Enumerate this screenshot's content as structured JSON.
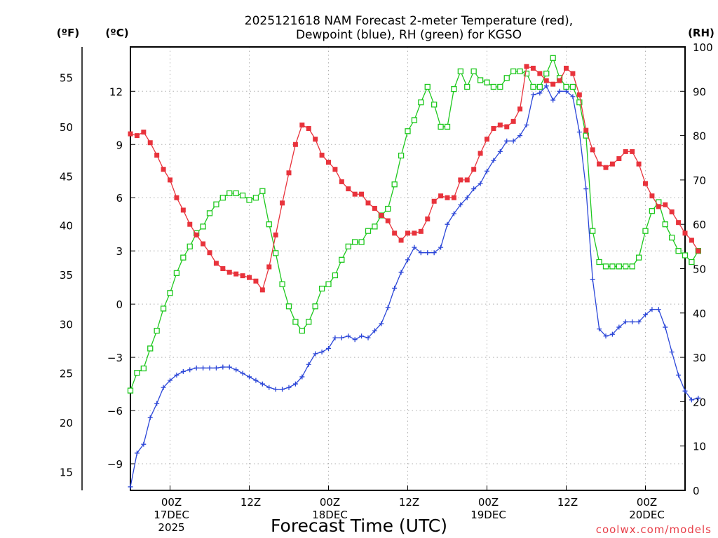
{
  "chart_data": {
    "type": "line",
    "title": [
      "2025121618 NAM Forecast 2-meter Temperature (red),",
      "Dewpoint (blue), RH (green) for KGSO"
    ],
    "xlabel": "Forecast Time (UTC)",
    "credit": "coolwx.com/models",
    "unit_labels": {
      "fahrenheit": "(ºF)",
      "celsius": "(ºC)",
      "rh": "(RH)"
    },
    "x_unit": "forecast hour (0 = 2025-12-16 18Z)",
    "xlim": [
      0,
      84
    ],
    "x_ticks": [
      {
        "x": 6,
        "lines": [
          "00Z",
          "17DEC",
          "2025"
        ]
      },
      {
        "x": 18,
        "lines": [
          "12Z"
        ]
      },
      {
        "x": 30,
        "lines": [
          "00Z",
          "18DEC"
        ]
      },
      {
        "x": 42,
        "lines": [
          "12Z"
        ]
      },
      {
        "x": 54,
        "lines": [
          "00Z",
          "19DEC"
        ]
      },
      {
        "x": 66,
        "lines": [
          "12Z"
        ]
      },
      {
        "x": 78,
        "lines": [
          "00Z",
          "20DEC"
        ]
      }
    ],
    "celsius_axis": {
      "range": [
        -10.5,
        14.5
      ],
      "ticks": [
        -9,
        -6,
        -3,
        0,
        3,
        6,
        9,
        12
      ]
    },
    "fahrenheit_axis": {
      "range": [
        13.1,
        58.1
      ],
      "ticks": [
        15,
        20,
        25,
        30,
        35,
        40,
        45,
        50,
        55
      ]
    },
    "rh_axis": {
      "range": [
        0,
        100
      ],
      "ticks": [
        0,
        10,
        20,
        30,
        40,
        50,
        60,
        70,
        80,
        90,
        100
      ]
    },
    "colors": {
      "temperature": "#e8333c",
      "dewpoint": "#2b46d8",
      "rh": "#1ec81e",
      "grid": "#b0b0b0"
    },
    "series": [
      {
        "name": "Temperature",
        "units": "C",
        "color": "#e8333c",
        "marker": "filled-square",
        "values": [
          9.6,
          9.5,
          9.7,
          9.1,
          8.4,
          7.6,
          7.0,
          6.0,
          5.3,
          4.5,
          3.9,
          3.4,
          2.9,
          2.3,
          2.0,
          1.8,
          1.7,
          1.6,
          1.5,
          1.3,
          0.8,
          2.1,
          3.9,
          5.7,
          7.4,
          9.0,
          10.1,
          9.9,
          9.3,
          8.4,
          8.0,
          7.6,
          6.9,
          6.5,
          6.2,
          6.2,
          5.7,
          5.4,
          5.0,
          4.7,
          4.0,
          3.6,
          4.0,
          4.0,
          4.1,
          4.8,
          5.8,
          6.1,
          6.0,
          6.0,
          7.0,
          7.0,
          7.6,
          8.5,
          9.3,
          9.9,
          10.1,
          10.0,
          10.3,
          11.0,
          13.4,
          13.3,
          13.0,
          12.6,
          12.4,
          12.6,
          13.3,
          13.0,
          11.8,
          9.8,
          8.7,
          7.9,
          7.7,
          7.9,
          8.2,
          8.6,
          8.6,
          7.9,
          6.8,
          6.1,
          5.5,
          5.6,
          5.2,
          4.6,
          4.0,
          3.6,
          3.0
        ]
      },
      {
        "name": "Dewpoint",
        "units": "C",
        "color": "#2b46d8",
        "marker": "plus",
        "values": [
          -10.3,
          -8.4,
          -7.9,
          -6.4,
          -5.6,
          -4.7,
          -4.3,
          -4.0,
          -3.8,
          -3.7,
          -3.6,
          -3.6,
          -3.6,
          -3.6,
          -3.55,
          -3.55,
          -3.7,
          -3.9,
          -4.1,
          -4.3,
          -4.5,
          -4.7,
          -4.8,
          -4.8,
          -4.7,
          -4.5,
          -4.1,
          -3.4,
          -2.8,
          -2.7,
          -2.5,
          -1.9,
          -1.9,
          -1.8,
          -2.0,
          -1.8,
          -1.9,
          -1.5,
          -1.1,
          -0.2,
          0.9,
          1.8,
          2.5,
          3.2,
          2.9,
          2.9,
          2.9,
          3.2,
          4.5,
          5.1,
          5.6,
          6.0,
          6.5,
          6.8,
          7.5,
          8.1,
          8.6,
          9.2,
          9.2,
          9.5,
          10.1,
          11.8,
          11.9,
          12.3,
          11.5,
          12.0,
          12.0,
          11.7,
          9.7,
          6.5,
          1.4,
          -1.4,
          -1.8,
          -1.7,
          -1.3,
          -1.0,
          -1.0,
          -1.0,
          -0.6,
          -0.3,
          -0.3,
          -1.3,
          -2.7,
          -4.0,
          -4.9,
          -5.4,
          -5.3
        ]
      },
      {
        "name": "Relative Humidity",
        "units": "%",
        "color": "#1ec81e",
        "marker": "open-square",
        "values": [
          22.5,
          26.5,
          27.5,
          32,
          36,
          41,
          44.5,
          49,
          52.5,
          55,
          58,
          59.5,
          62.5,
          64.5,
          66,
          67,
          67,
          66.5,
          65.5,
          66,
          67.5,
          60,
          53.5,
          46.5,
          41.5,
          38,
          36,
          38,
          41.5,
          45.5,
          46.5,
          48.5,
          52,
          55,
          56,
          56,
          58.5,
          59.5,
          62,
          63.5,
          69,
          75.5,
          81,
          83.5,
          87.5,
          91,
          87,
          82,
          82,
          90.5,
          94.5,
          91,
          94.5,
          92.5,
          92,
          91,
          91,
          93,
          94.5,
          94.5,
          94,
          91,
          91,
          94,
          97.5,
          93,
          91,
          91,
          87.5,
          80,
          58.5,
          51.5,
          50.5,
          50.5,
          50.5,
          50.5,
          50.5,
          52.5,
          58.5,
          63,
          65,
          60,
          57,
          54,
          53,
          51.5,
          54
        ]
      }
    ]
  }
}
